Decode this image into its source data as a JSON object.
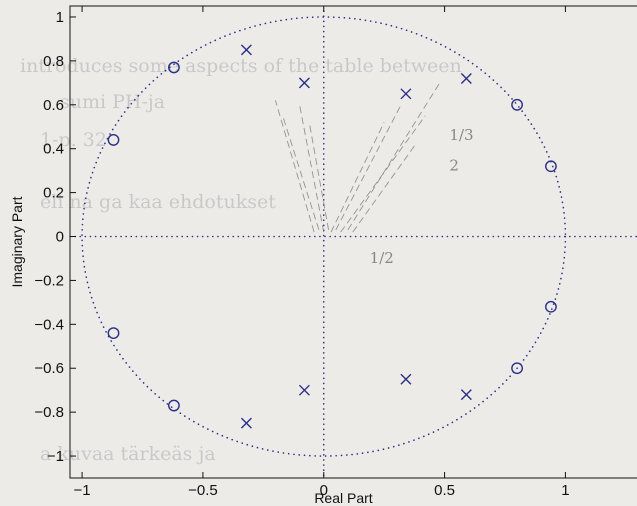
{
  "chart_data": {
    "type": "scatter",
    "title": "",
    "xlabel": "Real Part",
    "ylabel": "Imaginary Part",
    "xlim": [
      -1.05,
      1.35
    ],
    "ylim": [
      -1.1,
      1.05
    ],
    "xticks": [
      -1,
      -0.5,
      0,
      0.5,
      1
    ],
    "xtick_labels": [
      "−1",
      "−0.5",
      "0",
      "0.5",
      "1"
    ],
    "yticks": [
      1,
      0.8,
      0.6,
      0.4,
      0.2,
      0,
      -0.2,
      -0.4,
      -0.6,
      -0.8,
      -1
    ],
    "ytick_labels": [
      "1",
      "0.8",
      "0.6",
      "0.4",
      "0.2",
      "0",
      "−0.2",
      "−0.4",
      "−0.6",
      "−0.8",
      "−1"
    ],
    "grid": false,
    "unit_circle": true,
    "colors": {
      "marker": "#2b2f86",
      "axes": "#111111",
      "background": "#ecebe8",
      "pencil": "#6f6f6f"
    },
    "series": [
      {
        "marker": "x",
        "x": [
          -0.32,
          -0.08,
          0.34,
          0.59,
          -0.32,
          -0.08,
          0.34,
          0.59
        ],
        "y": [
          0.85,
          0.7,
          0.65,
          0.72,
          -0.85,
          -0.7,
          -0.65,
          -0.72
        ]
      },
      {
        "marker": "o",
        "x": [
          -0.62,
          -0.87,
          0.8,
          0.94,
          -0.62,
          -0.87,
          0.8,
          0.94
        ],
        "y": [
          0.77,
          0.44,
          0.6,
          0.32,
          -0.77,
          -0.44,
          -0.6,
          -0.32
        ]
      }
    ],
    "annotations": [
      "1/2",
      "1/3",
      "2"
    ]
  },
  "background_text": [
    "introduces some aspects of the table between",
    "sumi PH-ja",
    "1-p. 32",
    "eli na ga kaa ehdotukset",
    "a kuvaa tärkeäs ja"
  ]
}
